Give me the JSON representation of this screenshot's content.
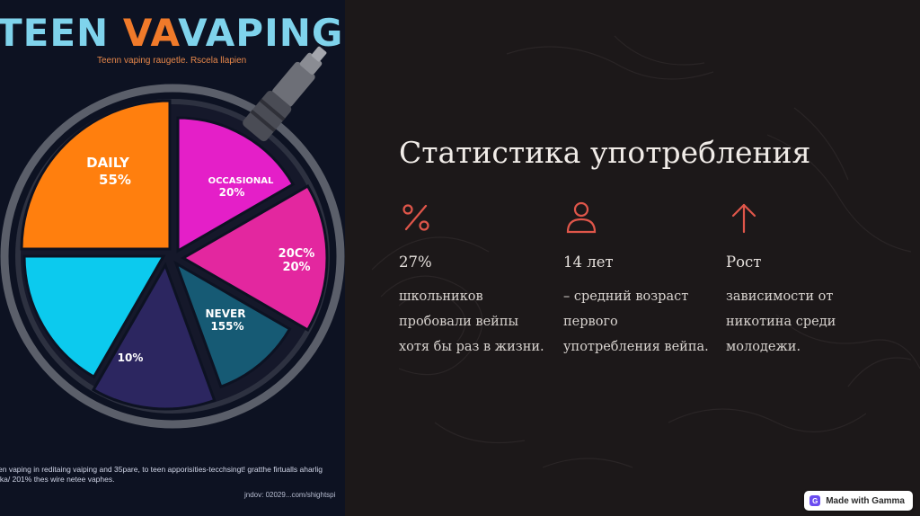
{
  "poster": {
    "title_part1": "TEEN ",
    "title_part2": "VA",
    "title_part3": "VAPING",
    "subtitle": "Teenn vaping raugetle. Rscela llapien",
    "caption_line1": "en vaping in reditaing vaiping and 35pare, to teen apporisities-tecchsingt! gratthe firtualls aharlig",
    "caption_line2": "ika/ 201% thes wire netee vaphes.",
    "source": "jndov: 02029...com/shightspi",
    "colors": {
      "title": "#7fd3ec",
      "accent": "#f07a2a",
      "background": "#0d1222"
    }
  },
  "chart_data": {
    "type": "pie",
    "slices": [
      {
        "name": "DAILY",
        "value_label": "55%",
        "color": "#ff7f0e"
      },
      {
        "name": "OCCASIONAL",
        "value_label": "20%",
        "color": "#e41fc8"
      },
      {
        "name": "20C%",
        "value_label": "20%",
        "color": "#e3279f"
      },
      {
        "name": "NEVER",
        "value_label": "155%",
        "color": "#165a74"
      },
      {
        "name": "",
        "value_label": "10%",
        "color": "#2c2660"
      },
      {
        "name": "",
        "value_label": "",
        "color": "#0ccaee"
      }
    ]
  },
  "slide": {
    "heading": "Статистика употребления",
    "stats": [
      {
        "icon": "percent-icon",
        "value": "27%",
        "description": "школьников пробовали вейпы хотя бы раз в жизни."
      },
      {
        "icon": "person-icon",
        "value": "14 лет",
        "description": "– средний возраст первого употребления вейпа."
      },
      {
        "icon": "arrow-up-icon",
        "value": "Рост",
        "description": "зависимости от никотина среди молодежи."
      }
    ],
    "icon_color": "#e0564a"
  },
  "badge": {
    "label": "Made with Gamma",
    "logo_letter": "G"
  }
}
